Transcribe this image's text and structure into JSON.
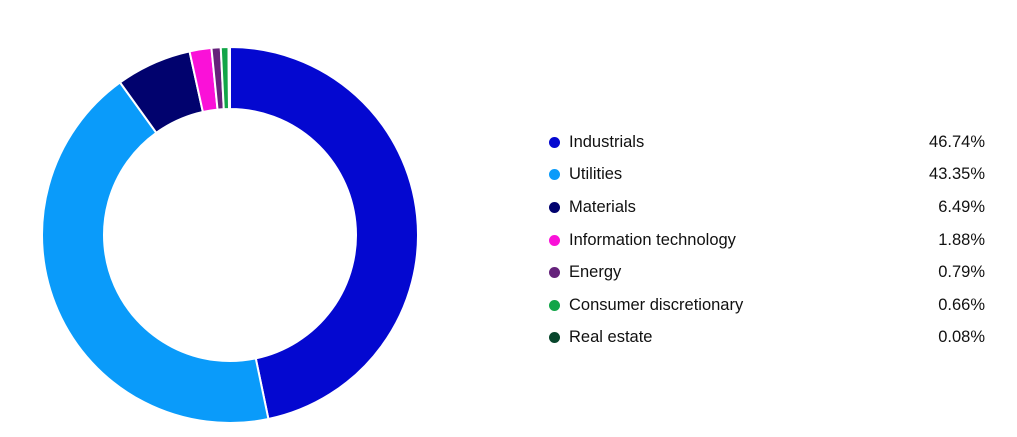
{
  "chart_data": {
    "type": "pie",
    "variant": "donut",
    "legend_position": "right",
    "series": [
      {
        "label": "Industrials",
        "value": 46.74,
        "value_text": "46.74%",
        "color": "#0408d0"
      },
      {
        "label": "Utilities",
        "value": 43.35,
        "value_text": "43.35%",
        "color": "#0a9bfa"
      },
      {
        "label": "Materials",
        "value": 6.49,
        "value_text": "6.49%",
        "color": "#01026e"
      },
      {
        "label": "Information technology",
        "value": 1.88,
        "value_text": "1.88%",
        "color": "#fa11d8"
      },
      {
        "label": "Energy",
        "value": 0.79,
        "value_text": "0.79%",
        "color": "#65227b"
      },
      {
        "label": "Consumer discretionary",
        "value": 0.66,
        "value_text": "0.66%",
        "color": "#12a548"
      },
      {
        "label": "Real estate",
        "value": 0.08,
        "value_text": "0.08%",
        "color": "#08462c"
      }
    ]
  }
}
